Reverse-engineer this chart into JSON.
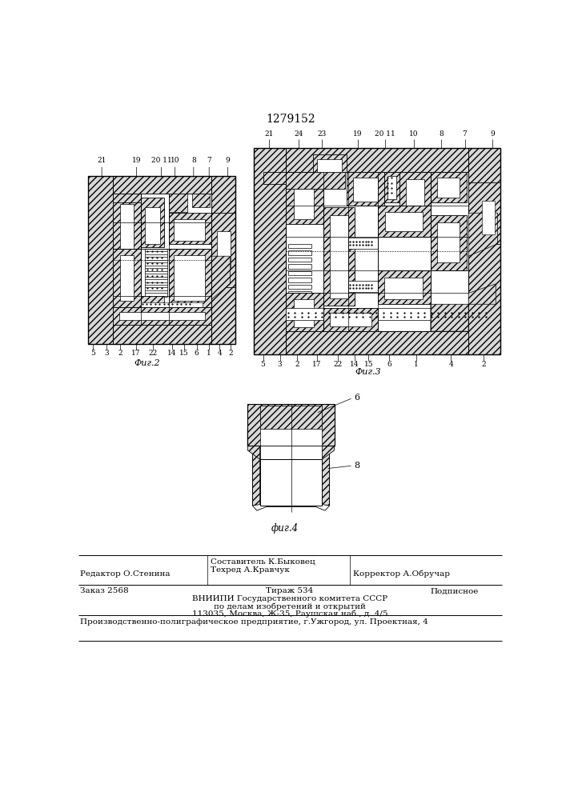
{
  "patent_number": "1279152",
  "fig2_caption": "Фиг.2",
  "fig3_caption": "Фиг.3",
  "fig4_caption": "фиг.4",
  "editor_line": "Редактор О.Стенина",
  "composer_line": "Составитель К.Быковец",
  "techred_line": "Техред А.Кравчук",
  "corrector_line": "Корректор А.Обручар",
  "order_line": "Заказ 2568",
  "tirage_line": "Тираж 534",
  "podpisnoe_line": "Подписное",
  "vniishi_line": "ВНИИПИ Государственного комитета СССР",
  "vniishi_line2": "по делам изобретений и открытий",
  "vniishi_line3": "113035, Москва, Ж-35, Раушская наб., д. 4/5",
  "printer_line": "Производственно-полиграфическое предприятие, г.Ужгород, ул. Проектная, 4",
  "bg": "#ffffff",
  "hatch_gray": "#d8d8d8",
  "dark_gray": "#b0b0b0"
}
